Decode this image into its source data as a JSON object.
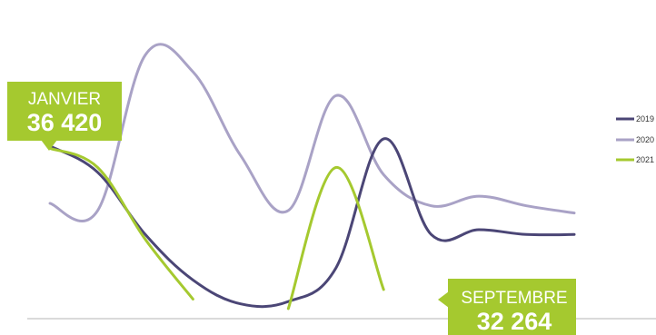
{
  "chart_data": {
    "type": "line",
    "title": "",
    "xlabel": "",
    "ylabel": "",
    "x": [
      1,
      2,
      3,
      4,
      5,
      6,
      7,
      8,
      9,
      10,
      11,
      12
    ],
    "ylim": [
      -140,
      0
    ],
    "series": [
      {
        "name": "2019",
        "color": "#4b4676",
        "values": [
          -61,
          -72,
          -98,
          -117,
          -127,
          -126,
          -112,
          -58,
          -98,
          -96,
          -98,
          -98
        ]
      },
      {
        "name": "2020",
        "color": "#a9a2c6",
        "values": [
          -85,
          -88,
          -23,
          -30,
          -65,
          -88,
          -40,
          -73,
          -86,
          -82,
          -86,
          -89
        ],
        "note_values_start": 1
      },
      {
        "name": "2021",
        "color": "#a5c92f",
        "values": [
          -62,
          -70,
          -100,
          -125,
          null,
          -129,
          -70,
          -121,
          null,
          null,
          null,
          null
        ]
      }
    ],
    "legend": {
      "position": "right",
      "items": [
        "2019",
        "2020",
        "2021"
      ]
    },
    "grid": false,
    "annotations": [
      {
        "month": "JANVIER",
        "value": "36 420"
      },
      {
        "month": "SEPTEMBRE",
        "value": "32 264"
      }
    ]
  }
}
